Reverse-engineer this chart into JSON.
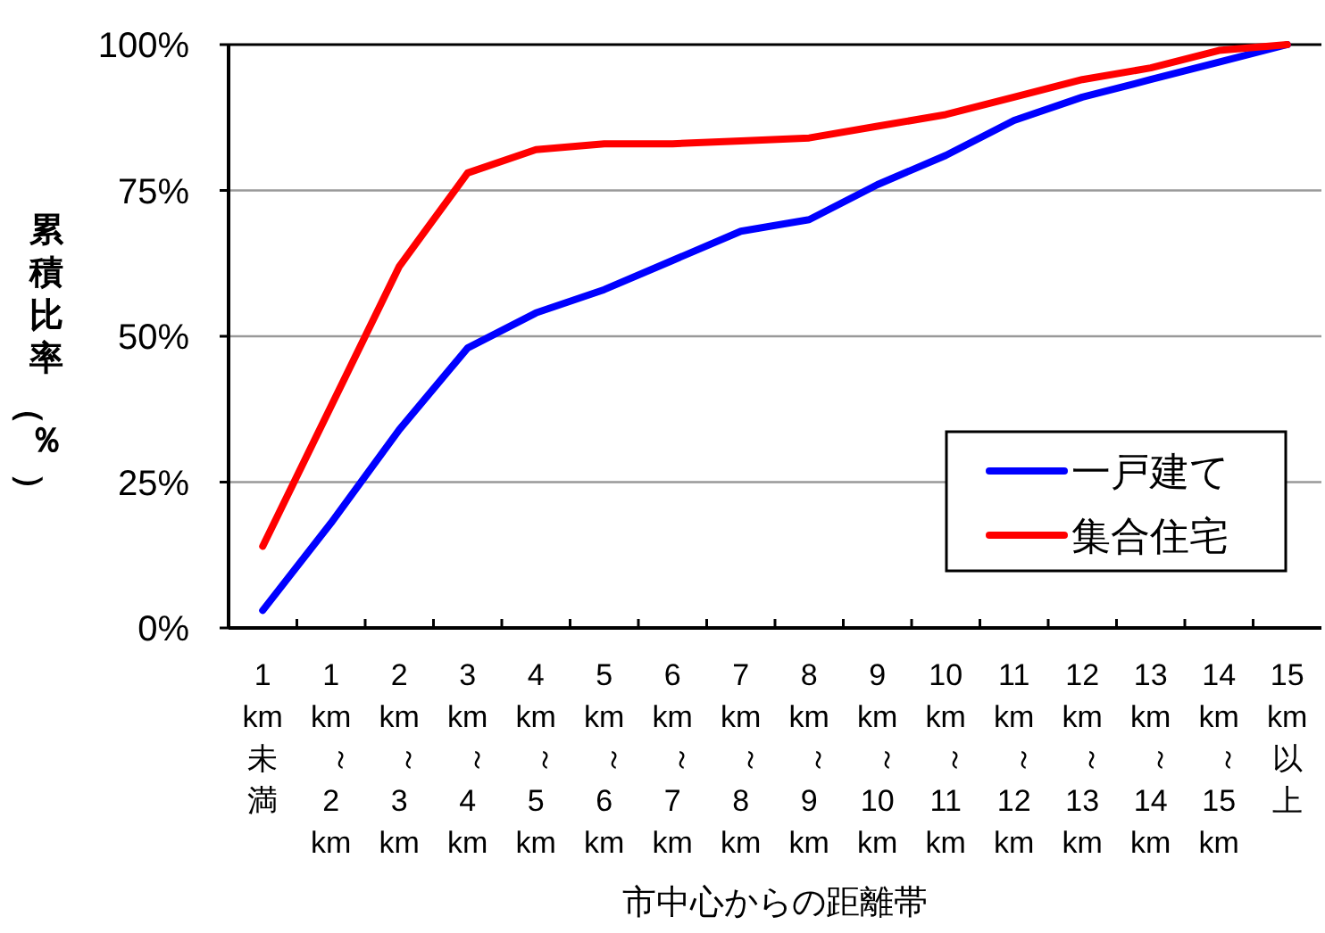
{
  "chart_data": {
    "type": "line",
    "xlabel": "市中心からの距離帯",
    "ylabel": "累積比率（％）",
    "categories": [
      "1km未満",
      "1km～2km",
      "2km～3km",
      "3km～4km",
      "4km～5km",
      "5km～6km",
      "6km～7km",
      "7km～8km",
      "8km～9km",
      "9km～10km",
      "10km～11km",
      "11km～12km",
      "12km～13km",
      "13km～14km",
      "14km～15km",
      "15km以上"
    ],
    "series": [
      {
        "name": "一戸建て",
        "color": "#0000ff",
        "values": [
          3,
          18,
          34,
          48,
          54,
          58,
          63,
          68,
          70,
          76,
          81,
          87,
          91,
          94,
          97,
          100
        ]
      },
      {
        "name": "集合住宅",
        "color": "#ff0000",
        "values": [
          14,
          38,
          62,
          78,
          82,
          83,
          83,
          83.5,
          84,
          86,
          88,
          91,
          94,
          96,
          99,
          100
        ]
      }
    ],
    "ylim": [
      0,
      100
    ],
    "yticks": [
      {
        "value": 0,
        "label": "0%"
      },
      {
        "value": 25,
        "label": "25%"
      },
      {
        "value": 50,
        "label": "50%"
      },
      {
        "value": 75,
        "label": "75%"
      },
      {
        "value": 100,
        "label": "100%"
      }
    ],
    "grid": "y",
    "legend": "bottom right",
    "marker": "none",
    "line_style": "solid"
  }
}
